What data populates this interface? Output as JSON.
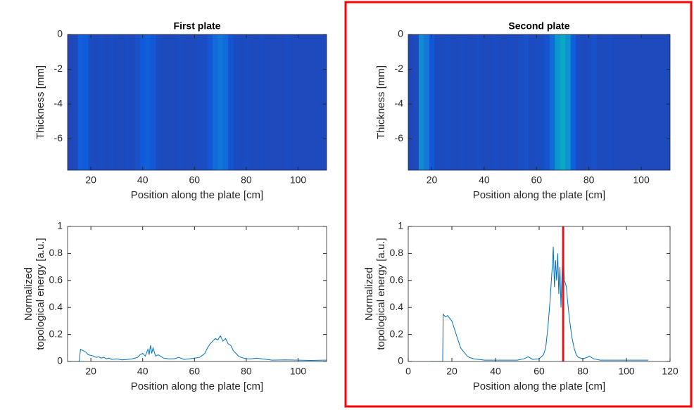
{
  "chart_data": [
    {
      "type": "heatmap",
      "title": "First plate",
      "xlabel": "Position along the plate [cm]",
      "ylabel": [
        "Thickness [mm]"
      ],
      "xlim": [
        11,
        111
      ],
      "xticks": [
        20,
        40,
        60,
        80,
        100
      ],
      "ylim": [
        -7.8,
        0
      ],
      "yticks": [
        0,
        -2,
        -4,
        -6
      ],
      "colormap": [
        "#352a87",
        "#0f5cdd",
        "#1481d6",
        "#06a4ca",
        "#2eb7a4",
        "#87bf77",
        "#d1bb59",
        "#f9fb0e"
      ],
      "x": [
        12,
        14,
        16,
        18,
        20,
        22,
        24,
        26,
        28,
        30,
        32,
        34,
        36,
        38,
        40,
        42,
        44,
        46,
        48,
        50,
        52,
        54,
        56,
        58,
        60,
        62,
        64,
        66,
        68,
        70,
        72,
        74,
        76,
        78,
        80,
        82,
        84,
        86,
        88,
        90,
        92,
        94,
        96,
        98,
        100,
        102,
        104,
        106,
        108,
        110
      ],
      "z": [
        0.08,
        0.09,
        0.16,
        0.14,
        0.1,
        0.09,
        0.1,
        0.09,
        0.1,
        0.09,
        0.09,
        0.1,
        0.09,
        0.11,
        0.14,
        0.16,
        0.13,
        0.1,
        0.09,
        0.09,
        0.09,
        0.1,
        0.09,
        0.09,
        0.09,
        0.1,
        0.1,
        0.13,
        0.2,
        0.24,
        0.2,
        0.12,
        0.1,
        0.09,
        0.1,
        0.09,
        0.09,
        0.1,
        0.09,
        0.09,
        0.09,
        0.09,
        0.1,
        0.09,
        0.09,
        0.09,
        0.09,
        0.09,
        0.09,
        0.09
      ]
    },
    {
      "type": "heatmap",
      "title": "Second plate",
      "xlabel": "Position along the plate [cm]",
      "ylabel": [
        "Thickness [mm]"
      ],
      "xlim": [
        11,
        111
      ],
      "xticks": [
        20,
        40,
        60,
        80,
        100
      ],
      "ylim": [
        -7.8,
        0
      ],
      "yticks": [
        0,
        -2,
        -4,
        -6
      ],
      "colormap": [
        "#352a87",
        "#0f5cdd",
        "#1481d6",
        "#06a4ca",
        "#2eb7a4",
        "#87bf77",
        "#d1bb59",
        "#f9fb0e"
      ],
      "x": [
        12,
        14,
        16,
        18,
        20,
        22,
        24,
        26,
        28,
        30,
        32,
        34,
        36,
        38,
        40,
        42,
        44,
        46,
        48,
        50,
        52,
        54,
        56,
        58,
        60,
        62,
        64,
        66,
        68,
        70,
        72,
        74,
        76,
        78,
        80,
        82,
        84,
        86,
        88,
        90,
        92,
        94,
        96,
        98,
        100,
        102,
        104,
        106,
        108,
        110
      ],
      "z": [
        0.08,
        0.09,
        0.32,
        0.25,
        0.13,
        0.1,
        0.09,
        0.1,
        0.09,
        0.09,
        0.1,
        0.09,
        0.09,
        0.1,
        0.09,
        0.09,
        0.1,
        0.09,
        0.09,
        0.1,
        0.09,
        0.1,
        0.11,
        0.09,
        0.1,
        0.1,
        0.12,
        0.2,
        0.38,
        0.45,
        0.36,
        0.15,
        0.1,
        0.09,
        0.1,
        0.11,
        0.09,
        0.09,
        0.1,
        0.09,
        0.09,
        0.09,
        0.09,
        0.09,
        0.09,
        0.09,
        0.09,
        0.09,
        0.09,
        0.09
      ]
    },
    {
      "type": "line",
      "xlabel": "Position along the plate [cm]",
      "ylabel": [
        "Normalized",
        "topological energy [a.u.]"
      ],
      "xlim": [
        11,
        111
      ],
      "xticks": [
        20,
        40,
        60,
        80,
        100
      ],
      "ylim": [
        0,
        1
      ],
      "yticks": [
        0,
        0.2,
        0.4,
        0.6,
        0.8,
        1
      ],
      "color": "#0072bd",
      "x": [
        11,
        12,
        13,
        14,
        15,
        15.5,
        16,
        16.5,
        17,
        18,
        19,
        20,
        21,
        22,
        23,
        24,
        25,
        26,
        27,
        28,
        30,
        32,
        34,
        36,
        38,
        39,
        40,
        41,
        42,
        42.5,
        43,
        43.5,
        44,
        45,
        46,
        48,
        50,
        52,
        54,
        56,
        58,
        60,
        62,
        64,
        65,
        66,
        67,
        68,
        69,
        70,
        71,
        72,
        73,
        74,
        75,
        76,
        77,
        78,
        80,
        82,
        84,
        86,
        88,
        90,
        95,
        100,
        105,
        110,
        111
      ],
      "values": [
        0,
        0,
        0,
        0,
        0,
        0.002,
        0.09,
        0.085,
        0.08,
        0.07,
        0.05,
        0.045,
        0.04,
        0.03,
        0.035,
        0.025,
        0.03,
        0.02,
        0.025,
        0.015,
        0.02,
        0.012,
        0.015,
        0.02,
        0.03,
        0.05,
        0.06,
        0.04,
        0.09,
        0.05,
        0.12,
        0.06,
        0.1,
        0.04,
        0.05,
        0.025,
        0.02,
        0.02,
        0.03,
        0.015,
        0.02,
        0.025,
        0.03,
        0.06,
        0.1,
        0.13,
        0.15,
        0.17,
        0.16,
        0.19,
        0.15,
        0.17,
        0.13,
        0.12,
        0.08,
        0.06,
        0.04,
        0.03,
        0.02,
        0.02,
        0.025,
        0.02,
        0.015,
        0.01,
        0.012,
        0.01,
        0.008,
        0.01,
        0.01
      ]
    },
    {
      "type": "line",
      "xlabel": "Position along the plate [cm]",
      "ylabel": [
        "Normalized",
        "topological energy [a.u.]"
      ],
      "xlim": [
        0,
        120
      ],
      "xticks": [
        0,
        20,
        40,
        60,
        80,
        100,
        120
      ],
      "ylim": [
        0,
        1
      ],
      "yticks": [
        0,
        0.2,
        0.4,
        0.6,
        0.8,
        1
      ],
      "color": "#0072bd",
      "x": [
        10,
        12,
        14,
        15,
        15.8,
        16,
        17,
        18,
        19,
        20,
        21,
        22,
        23,
        24,
        25,
        26,
        27,
        28,
        30,
        35,
        40,
        45,
        50,
        53,
        55,
        57,
        60,
        62,
        63,
        64,
        65,
        66,
        66.5,
        67,
        67.5,
        68,
        68.5,
        69,
        69.5,
        70,
        70.5,
        71,
        71.5,
        72,
        72.5,
        73,
        74,
        75,
        76,
        77,
        78,
        80,
        82,
        83,
        85,
        88,
        90,
        95,
        100,
        105,
        110
      ],
      "values": [
        0,
        0,
        0,
        0,
        0,
        0.35,
        0.33,
        0.34,
        0.32,
        0.3,
        0.25,
        0.2,
        0.15,
        0.1,
        0.08,
        0.06,
        0.04,
        0.03,
        0.02,
        0.01,
        0.01,
        0.01,
        0.01,
        0.02,
        0.035,
        0.015,
        0.02,
        0.05,
        0.1,
        0.25,
        0.45,
        0.7,
        0.85,
        0.55,
        0.75,
        0.6,
        0.8,
        0.5,
        0.7,
        0.4,
        0.65,
        0.85,
        0.6,
        0.58,
        0.55,
        0.45,
        0.3,
        0.18,
        0.1,
        0.05,
        0.03,
        0.02,
        0.03,
        0.04,
        0.02,
        0.01,
        0.01,
        0.01,
        0.01,
        0.01,
        0.01
      ],
      "vline": 71,
      "vline_color": "#e8141b"
    }
  ]
}
